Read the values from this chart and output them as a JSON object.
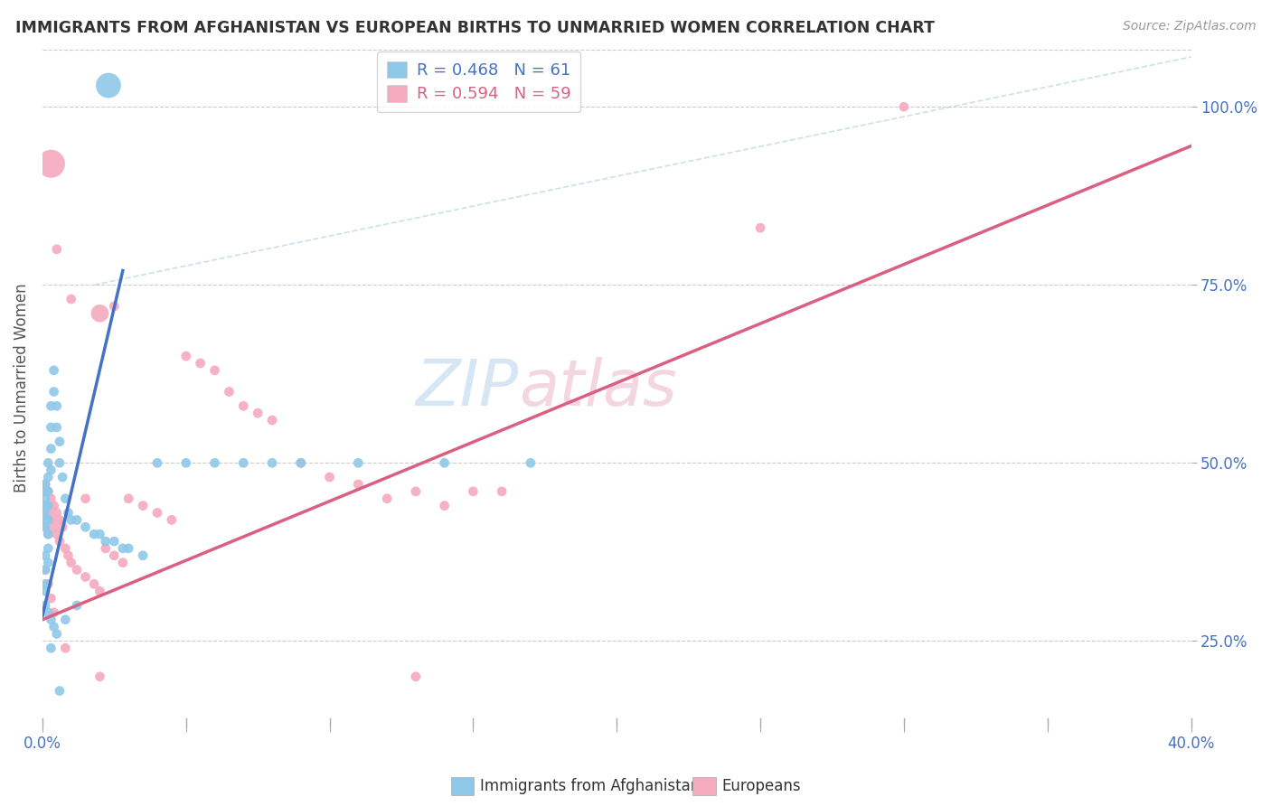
{
  "title": "IMMIGRANTS FROM AFGHANISTAN VS EUROPEAN BIRTHS TO UNMARRIED WOMEN CORRELATION CHART",
  "source": "Source: ZipAtlas.com",
  "ylabel": "Births to Unmarried Women",
  "legend_blue_r": "R = 0.468",
  "legend_blue_n": "N = 61",
  "legend_pink_r": "R = 0.594",
  "legend_pink_n": "N = 59",
  "legend_blue_label": "Immigrants from Afghanistan",
  "legend_pink_label": "Europeans",
  "blue_color": "#8EC8E8",
  "pink_color": "#F5AABE",
  "blue_line_color": "#4472C4",
  "pink_line_color": "#D96080",
  "blue_r_color": "#4472C4",
  "pink_r_color": "#D96080",
  "n_blue_color": "#44BB44",
  "n_pink_color": "#44BB44",
  "watermark_zip_color": "#C8DFF0",
  "watermark_atlas_color": "#E8C8D8",
  "xlim": [
    0.0,
    0.4
  ],
  "ylim": [
    0.13,
    1.08
  ],
  "x_ticks": [
    0.0,
    0.05,
    0.1,
    0.15,
    0.2,
    0.25,
    0.3,
    0.35,
    0.4
  ],
  "y_ticks": [
    0.25,
    0.5,
    0.75,
    1.0
  ],
  "blue_scatter_x": [
    0.001,
    0.001,
    0.001,
    0.001,
    0.001,
    0.001,
    0.001,
    0.001,
    0.001,
    0.001,
    0.002,
    0.002,
    0.002,
    0.002,
    0.002,
    0.002,
    0.002,
    0.002,
    0.003,
    0.003,
    0.003,
    0.003,
    0.004,
    0.004,
    0.005,
    0.005,
    0.006,
    0.006,
    0.007,
    0.008,
    0.009,
    0.01,
    0.012,
    0.015,
    0.018,
    0.02,
    0.022,
    0.025,
    0.028,
    0.03,
    0.035,
    0.04,
    0.05,
    0.06,
    0.07,
    0.08,
    0.09,
    0.11,
    0.14,
    0.17,
    0.023,
    0.012,
    0.008,
    0.005,
    0.003,
    0.001,
    0.001,
    0.002,
    0.003,
    0.004,
    0.006
  ],
  "blue_scatter_y": [
    0.47,
    0.46,
    0.45,
    0.44,
    0.43,
    0.42,
    0.41,
    0.37,
    0.35,
    0.33,
    0.5,
    0.48,
    0.46,
    0.44,
    0.42,
    0.4,
    0.38,
    0.36,
    0.58,
    0.55,
    0.52,
    0.49,
    0.63,
    0.6,
    0.58,
    0.55,
    0.53,
    0.5,
    0.48,
    0.45,
    0.43,
    0.42,
    0.42,
    0.41,
    0.4,
    0.4,
    0.39,
    0.39,
    0.38,
    0.38,
    0.37,
    0.5,
    0.5,
    0.5,
    0.5,
    0.5,
    0.5,
    0.5,
    0.5,
    0.5,
    1.03,
    0.3,
    0.28,
    0.26,
    0.24,
    0.32,
    0.3,
    0.29,
    0.28,
    0.27,
    0.18
  ],
  "blue_scatter_s": [
    60,
    60,
    60,
    60,
    60,
    60,
    60,
    60,
    60,
    60,
    60,
    60,
    60,
    60,
    60,
    60,
    60,
    60,
    60,
    60,
    60,
    60,
    60,
    60,
    60,
    60,
    60,
    60,
    60,
    60,
    60,
    60,
    60,
    60,
    60,
    60,
    60,
    60,
    60,
    60,
    60,
    60,
    60,
    60,
    60,
    60,
    60,
    60,
    60,
    60,
    400,
    60,
    60,
    60,
    60,
    60,
    60,
    60,
    60,
    60,
    60
  ],
  "pink_scatter_x": [
    0.001,
    0.001,
    0.001,
    0.002,
    0.002,
    0.002,
    0.003,
    0.003,
    0.004,
    0.004,
    0.005,
    0.005,
    0.006,
    0.006,
    0.007,
    0.008,
    0.009,
    0.01,
    0.012,
    0.015,
    0.018,
    0.02,
    0.022,
    0.025,
    0.028,
    0.03,
    0.035,
    0.04,
    0.045,
    0.05,
    0.055,
    0.06,
    0.065,
    0.07,
    0.075,
    0.08,
    0.09,
    0.1,
    0.11,
    0.12,
    0.13,
    0.14,
    0.15,
    0.16,
    0.003,
    0.005,
    0.01,
    0.015,
    0.02,
    0.025,
    0.008,
    0.02,
    0.13,
    0.25,
    0.3,
    0.001,
    0.002,
    0.003,
    0.004
  ],
  "pink_scatter_y": [
    0.47,
    0.44,
    0.41,
    0.46,
    0.43,
    0.4,
    0.45,
    0.42,
    0.44,
    0.41,
    0.43,
    0.4,
    0.42,
    0.39,
    0.41,
    0.38,
    0.37,
    0.36,
    0.35,
    0.34,
    0.33,
    0.32,
    0.38,
    0.37,
    0.36,
    0.45,
    0.44,
    0.43,
    0.42,
    0.65,
    0.64,
    0.63,
    0.6,
    0.58,
    0.57,
    0.56,
    0.5,
    0.48,
    0.47,
    0.45,
    0.46,
    0.44,
    0.46,
    0.46,
    0.92,
    0.8,
    0.73,
    0.45,
    0.71,
    0.72,
    0.24,
    0.2,
    0.2,
    0.83,
    1.0,
    0.35,
    0.33,
    0.31,
    0.29
  ],
  "pink_scatter_s": [
    60,
    60,
    60,
    60,
    60,
    60,
    60,
    60,
    60,
    60,
    60,
    60,
    60,
    60,
    60,
    60,
    60,
    60,
    60,
    60,
    60,
    60,
    60,
    60,
    60,
    60,
    60,
    60,
    60,
    60,
    60,
    60,
    60,
    60,
    60,
    60,
    60,
    60,
    60,
    60,
    60,
    60,
    60,
    60,
    500,
    60,
    60,
    60,
    200,
    60,
    60,
    60,
    60,
    60,
    60,
    60,
    60,
    60,
    60
  ],
  "blue_line_x": [
    0.0,
    0.028
  ],
  "blue_line_y": [
    0.285,
    0.77
  ],
  "pink_line_x": [
    0.0,
    0.4
  ],
  "pink_line_y": [
    0.28,
    0.945
  ],
  "diag_line_x": [
    0.018,
    0.4
  ],
  "diag_line_y": [
    0.75,
    1.07
  ]
}
